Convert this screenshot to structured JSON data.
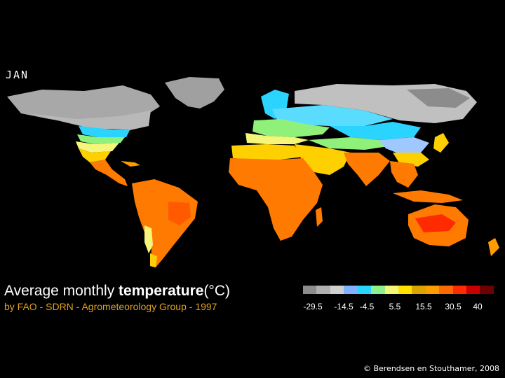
{
  "month": "JAN",
  "title_plain": "Average monthly ",
  "title_bold": "temperature",
  "title_unit": "(°C)",
  "subtitle": "by FAO - SDRN - Agrometeorology Group - 1997",
  "copyright": "© Berendsen en Stouthamer, 2008",
  "legend": {
    "colors": [
      "#8c8c8c",
      "#b0b0b0",
      "#d0d0d0",
      "#7fb3ff",
      "#2ad4ff",
      "#8cf08c",
      "#f5f57a",
      "#ffe100",
      "#d9a400",
      "#ff9d00",
      "#ff6a00",
      "#ff2a00",
      "#c80000",
      "#6e0000"
    ],
    "ticks": [
      "-29.5",
      "-14.5",
      "-4.5",
      "5.5",
      "15.5",
      "30.5",
      "40"
    ]
  },
  "map_colors": {
    "cold_gray": "#b8b8b8",
    "dark_gray": "#8c8c8c",
    "cyan": "#2ad4ff",
    "light_blue": "#9ec8ff",
    "green": "#8ff07a",
    "yellow": "#f5f57a",
    "gold": "#ffd000",
    "orange": "#ff7a00",
    "red": "#ff2a00"
  }
}
